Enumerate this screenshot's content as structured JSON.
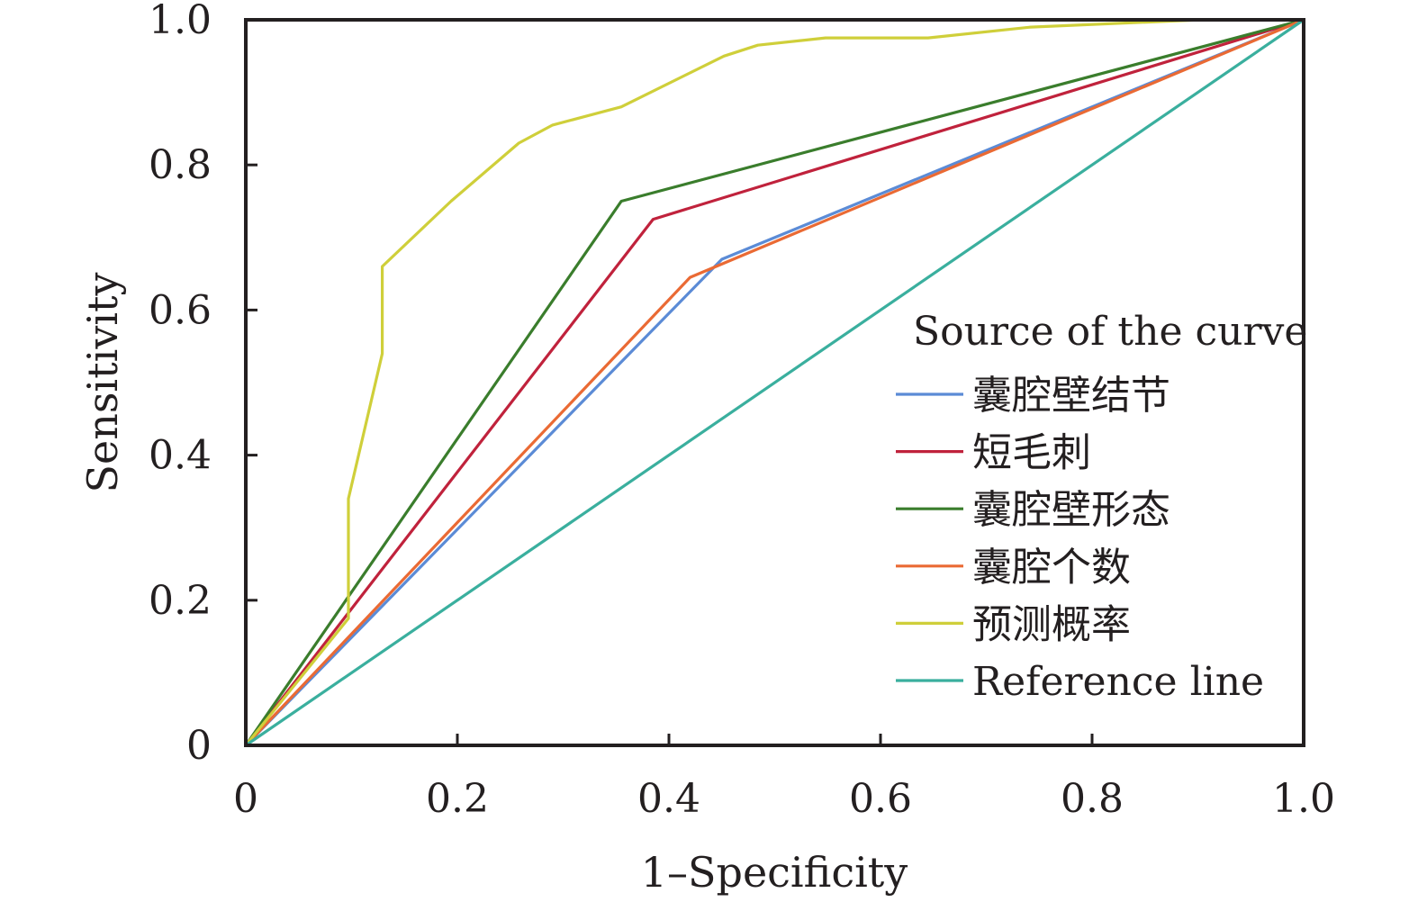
{
  "chart_data": {
    "type": "line",
    "xlabel": "1–Specificity",
    "ylabel": "Sensitivity",
    "xlim": [
      0,
      1
    ],
    "ylim": [
      0,
      1
    ],
    "x_ticks": [
      "0",
      "0.2",
      "0.4",
      "0.6",
      "0.8",
      "1.0"
    ],
    "y_ticks": [
      "0",
      "0.2",
      "0.4",
      "0.6",
      "0.8",
      "1.0"
    ],
    "grid": false,
    "legend_position": "right",
    "legend_title": "Source of the curve",
    "series": [
      {
        "name": "囊腔壁结节",
        "color": "#5b8bd6",
        "points": [
          [
            0,
            0
          ],
          [
            0.45,
            0.67
          ],
          [
            1.0,
            1.0
          ]
        ]
      },
      {
        "name": "短毛刺",
        "color": "#c0223c",
        "points": [
          [
            0,
            0
          ],
          [
            0.385,
            0.725
          ],
          [
            1.0,
            1.0
          ]
        ]
      },
      {
        "name": "囊腔壁形态",
        "color": "#3a7d2c",
        "points": [
          [
            0,
            0
          ],
          [
            0.355,
            0.75
          ],
          [
            1.0,
            1.0
          ]
        ]
      },
      {
        "name": "囊腔个数",
        "color": "#ea6a34",
        "points": [
          [
            0,
            0
          ],
          [
            0.42,
            0.645
          ],
          [
            1.0,
            1.0
          ]
        ]
      },
      {
        "name": "预测概率",
        "color": "#cfcf3a",
        "points": [
          [
            0,
            0
          ],
          [
            0.097,
            0.175
          ],
          [
            0.097,
            0.34
          ],
          [
            0.129,
            0.54
          ],
          [
            0.129,
            0.66
          ],
          [
            0.194,
            0.75
          ],
          [
            0.258,
            0.83
          ],
          [
            0.29,
            0.855
          ],
          [
            0.355,
            0.88
          ],
          [
            0.452,
            0.95
          ],
          [
            0.484,
            0.965
          ],
          [
            0.548,
            0.975
          ],
          [
            0.645,
            0.975
          ],
          [
            0.742,
            0.99
          ],
          [
            0.903,
            1.0
          ],
          [
            1.0,
            1.0
          ]
        ]
      },
      {
        "name": "Reference line",
        "color": "#3aaf9e",
        "points": [
          [
            0,
            0
          ],
          [
            1.0,
            1.0
          ]
        ]
      }
    ]
  }
}
